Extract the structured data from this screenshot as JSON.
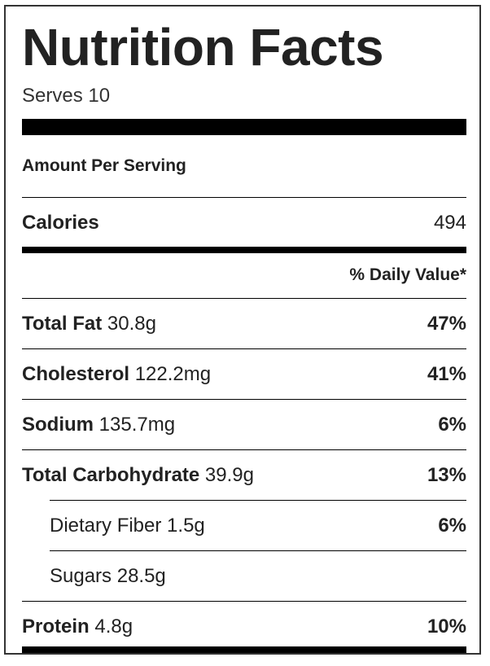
{
  "title": "Nutrition Facts",
  "serves": "Serves 10",
  "amount_per_serving": "Amount Per Serving",
  "calories": {
    "label": "Calories",
    "value": "494"
  },
  "daily_value_header": "% Daily Value*",
  "nutrients": [
    {
      "label": "Total Fat",
      "amount": "30.8g",
      "dv": "47%"
    },
    {
      "label": "Cholesterol",
      "amount": "122.2mg",
      "dv": "41%"
    },
    {
      "label": "Sodium",
      "amount": "135.7mg",
      "dv": "6%"
    },
    {
      "label": "Total Carbohydrate",
      "amount": "39.9g",
      "dv": "13%"
    }
  ],
  "sub_nutrients": [
    {
      "label": "Dietary Fiber",
      "amount": "1.5g",
      "dv": "6%"
    },
    {
      "label": "Sugars",
      "amount": "28.5g",
      "dv": ""
    }
  ],
  "protein": {
    "label": "Protein",
    "amount": "4.8g",
    "dv": "10%"
  }
}
